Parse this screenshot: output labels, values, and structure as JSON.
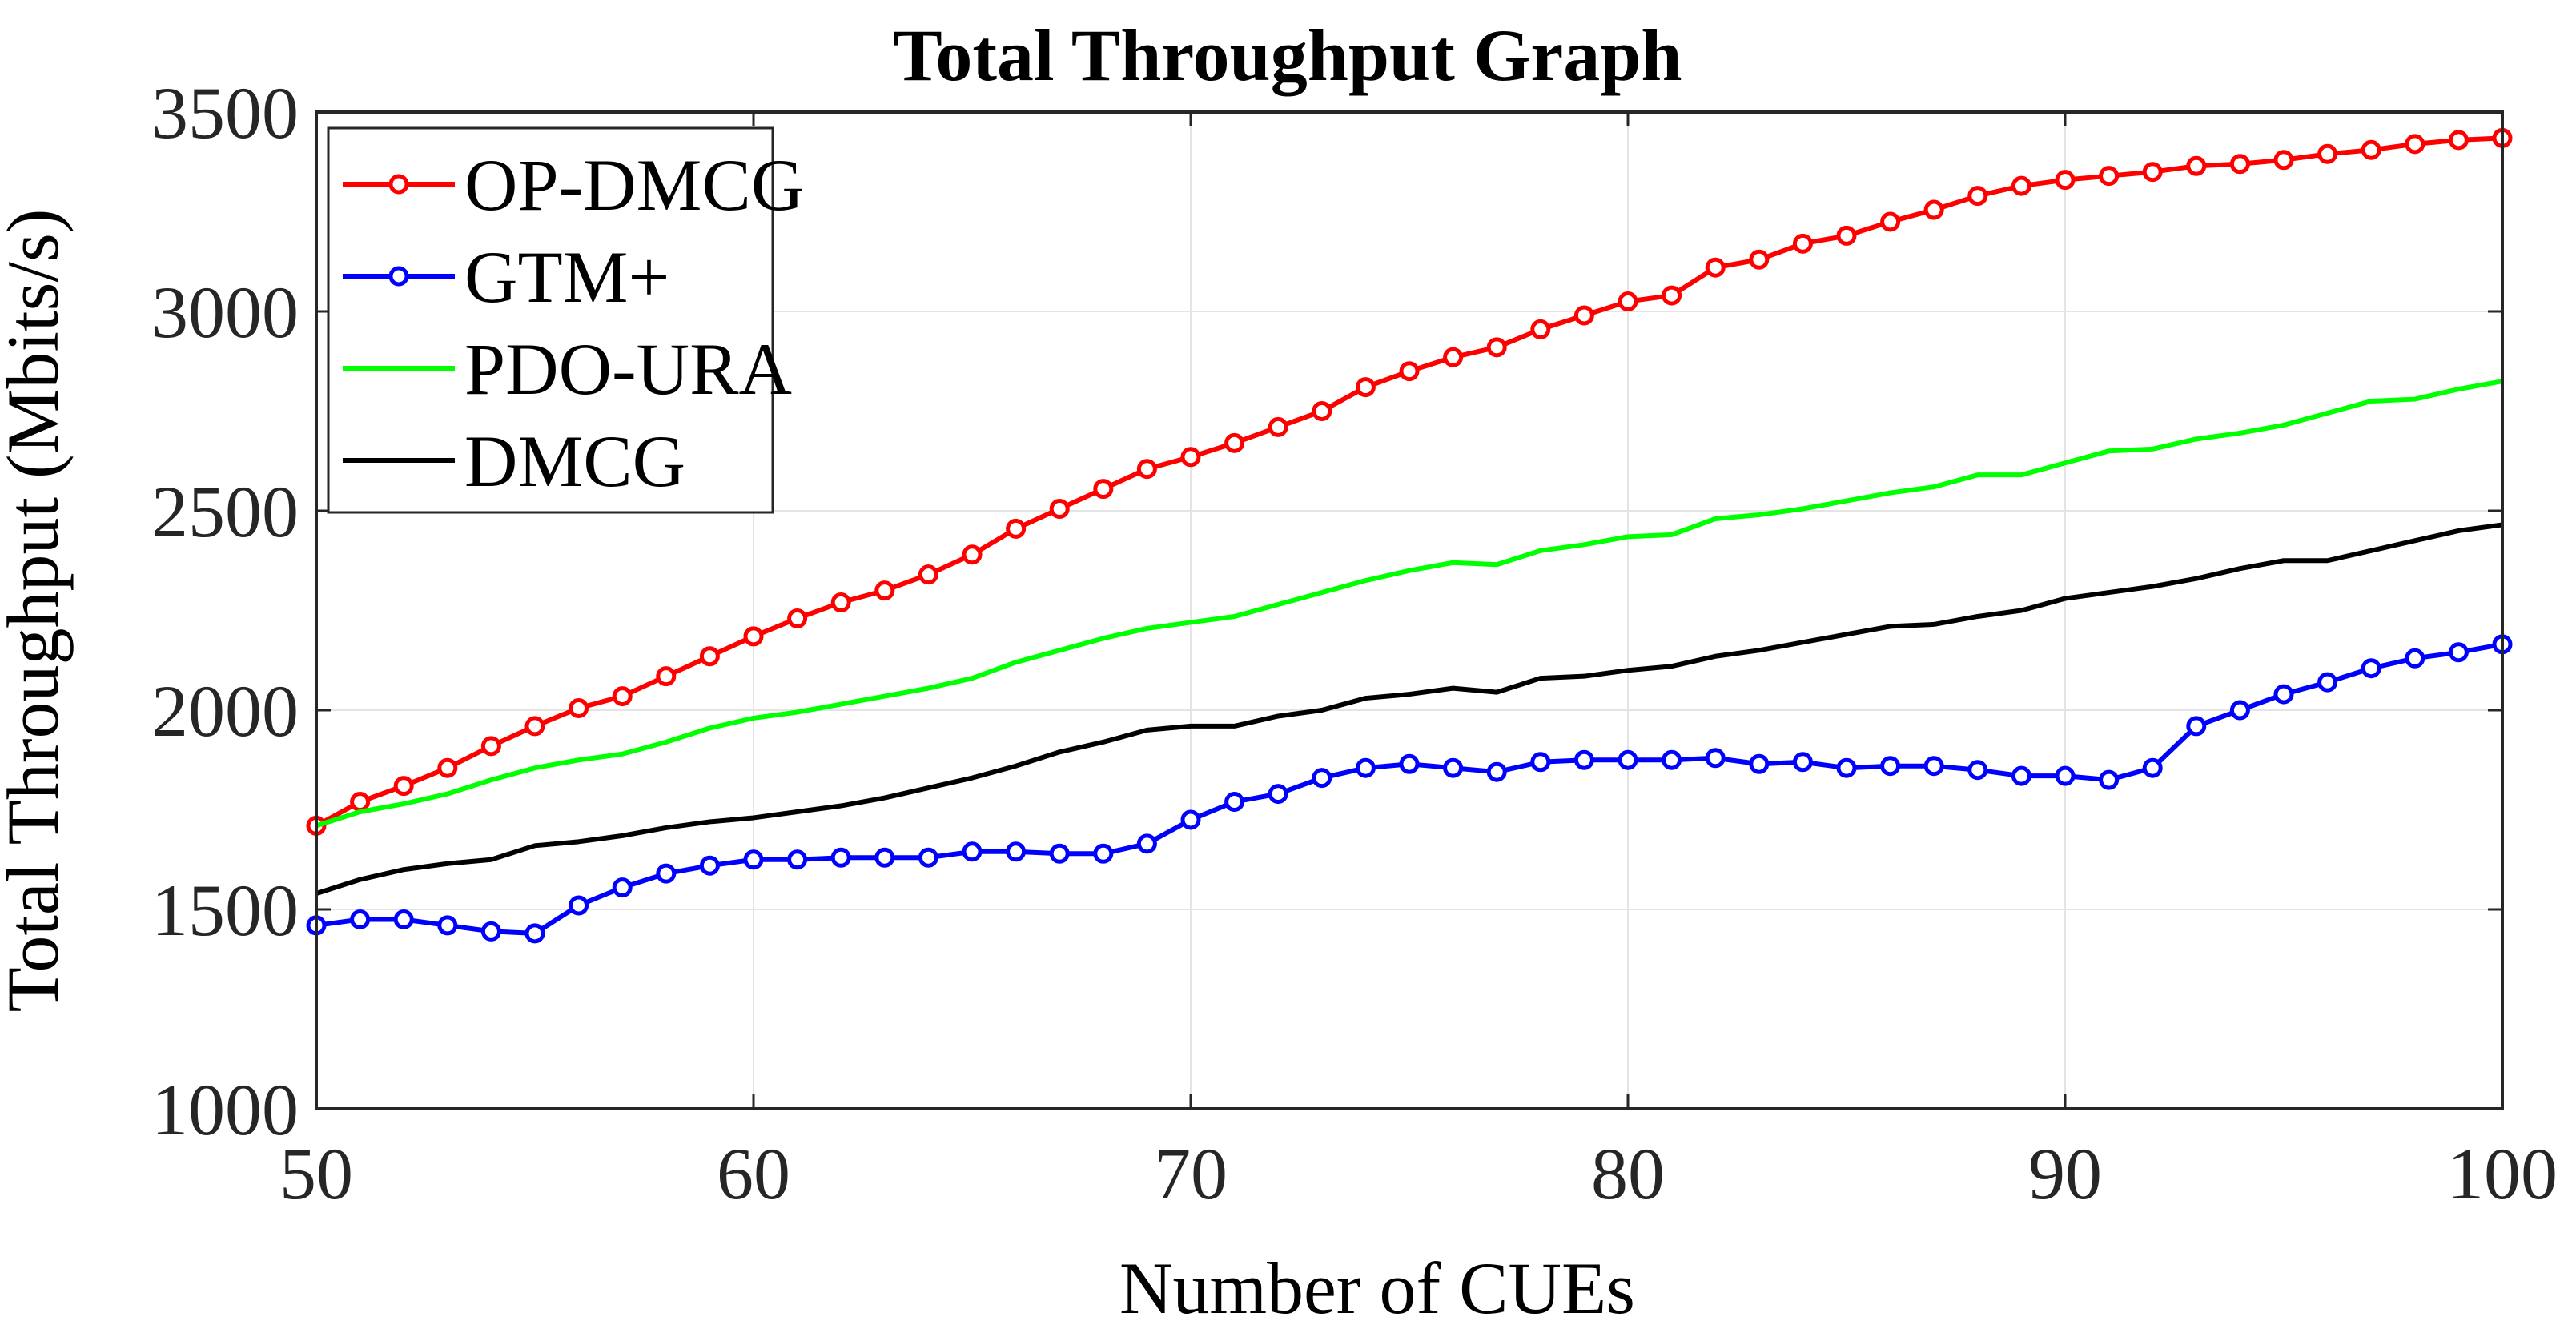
{
  "chart_data": {
    "type": "line",
    "title": "Total Throughput Graph",
    "xlabel": "Number of CUEs",
    "ylabel": "Total Throughput (Mbits/s)",
    "xlim": [
      50,
      100
    ],
    "ylim": [
      1000,
      3500
    ],
    "xticks": [
      50,
      60,
      70,
      80,
      90,
      100
    ],
    "yticks": [
      1000,
      1500,
      2000,
      2500,
      3000,
      3500
    ],
    "grid": true,
    "legend_position": "top-left",
    "x": [
      50,
      51,
      52,
      53,
      54,
      55,
      56,
      57,
      58,
      59,
      60,
      61,
      62,
      63,
      64,
      65,
      66,
      67,
      68,
      69,
      70,
      71,
      72,
      73,
      74,
      75,
      76,
      77,
      78,
      79,
      80,
      81,
      82,
      83,
      84,
      85,
      86,
      87,
      88,
      89,
      90,
      91,
      92,
      93,
      94,
      95,
      96,
      97,
      98,
      99,
      100
    ],
    "series": [
      {
        "name": "OP-DMCG",
        "color": "#ff0000",
        "marker": "circle",
        "values": [
          1710,
          1770,
          1810,
          1855,
          1910,
          1960,
          2005,
          2035,
          2085,
          2135,
          2185,
          2230,
          2270,
          2300,
          2340,
          2390,
          2455,
          2505,
          2555,
          2605,
          2635,
          2670,
          2710,
          2750,
          2810,
          2850,
          2885,
          2910,
          2955,
          2990,
          3025,
          3040,
          3110,
          3130,
          3170,
          3190,
          3225,
          3255,
          3290,
          3315,
          3330,
          3340,
          3350,
          3365,
          3370,
          3380,
          3395,
          3405,
          3420,
          3430,
          3435
        ]
      },
      {
        "name": "GTM+",
        "color": "#0000ff",
        "marker": "circle",
        "values": [
          1460,
          1475,
          1475,
          1460,
          1445,
          1440,
          1510,
          1555,
          1590,
          1610,
          1625,
          1625,
          1630,
          1630,
          1630,
          1645,
          1645,
          1640,
          1640,
          1665,
          1725,
          1770,
          1790,
          1830,
          1855,
          1865,
          1855,
          1845,
          1870,
          1875,
          1875,
          1875,
          1880,
          1865,
          1870,
          1855,
          1860,
          1860,
          1850,
          1835,
          1835,
          1825,
          1855,
          1960,
          2000,
          2040,
          2070,
          2105,
          2130,
          2145,
          2165
        ]
      },
      {
        "name": "PDO-URA",
        "color": "#00ff00",
        "marker": "none",
        "values": [
          1710,
          1745,
          1765,
          1790,
          1825,
          1855,
          1875,
          1890,
          1920,
          1955,
          1980,
          1995,
          2015,
          2035,
          2055,
          2080,
          2120,
          2150,
          2180,
          2205,
          2220,
          2235,
          2265,
          2295,
          2325,
          2350,
          2370,
          2365,
          2400,
          2415,
          2435,
          2440,
          2480,
          2490,
          2505,
          2525,
          2545,
          2560,
          2590,
          2590,
          2620,
          2650,
          2655,
          2680,
          2695,
          2715,
          2745,
          2775,
          2780,
          2805,
          2825
        ]
      },
      {
        "name": "DMCG",
        "color": "#000000",
        "marker": "none",
        "values": [
          1540,
          1575,
          1600,
          1615,
          1625,
          1660,
          1670,
          1685,
          1705,
          1720,
          1730,
          1745,
          1760,
          1780,
          1805,
          1830,
          1860,
          1895,
          1920,
          1950,
          1960,
          1960,
          1985,
          2000,
          2030,
          2040,
          2055,
          2045,
          2080,
          2085,
          2100,
          2110,
          2135,
          2150,
          2170,
          2190,
          2210,
          2215,
          2235,
          2250,
          2280,
          2295,
          2310,
          2330,
          2355,
          2375,
          2375,
          2400,
          2425,
          2450,
          2465
        ]
      }
    ]
  }
}
